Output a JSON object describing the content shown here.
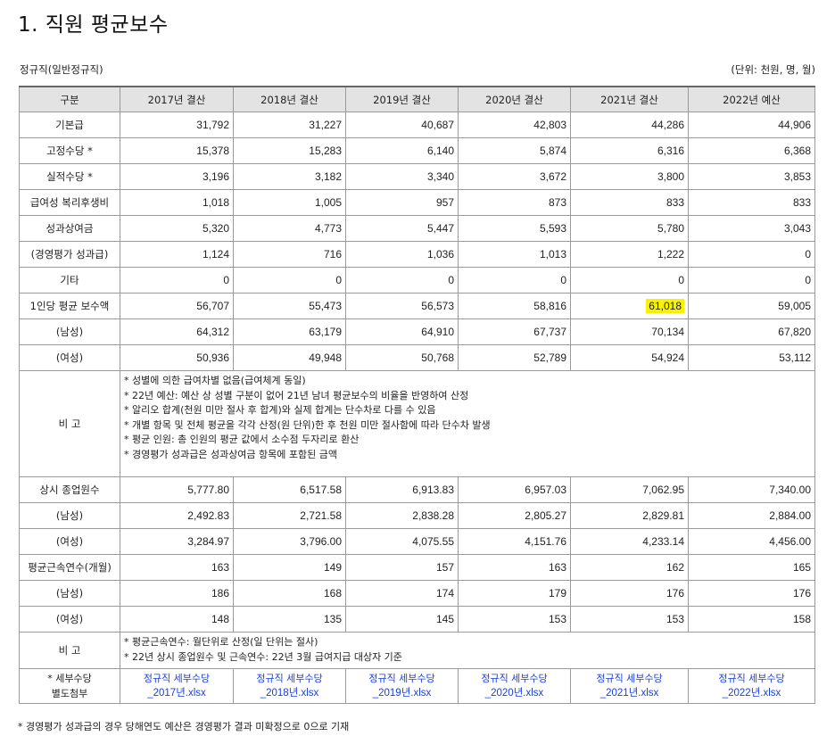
{
  "title": "1. 직원 평균보수",
  "subtitle_left": "정규직(일반정규직)",
  "subtitle_right": "(단위: 천원, 명, 월)",
  "columns": [
    "구분",
    "2017년 결산",
    "2018년 결산",
    "2019년 결산",
    "2020년 결산",
    "2021년 결산",
    "2022년 예산"
  ],
  "rows_pay": [
    {
      "label": "기본급",
      "values": [
        "31,792",
        "31,227",
        "40,687",
        "42,803",
        "44,286",
        "44,906"
      ]
    },
    {
      "label": "고정수당 *",
      "values": [
        "15,378",
        "15,283",
        "6,140",
        "5,874",
        "6,316",
        "6,368"
      ]
    },
    {
      "label": "실적수당 *",
      "values": [
        "3,196",
        "3,182",
        "3,340",
        "3,672",
        "3,800",
        "3,853"
      ]
    },
    {
      "label": "급여성 복리후생비",
      "values": [
        "1,018",
        "1,005",
        "957",
        "873",
        "833",
        "833"
      ]
    },
    {
      "label": "성과상여금",
      "values": [
        "5,320",
        "4,773",
        "5,447",
        "5,593",
        "5,780",
        "3,043"
      ]
    },
    {
      "label": "(경영평가 성과급)",
      "values": [
        "1,124",
        "716",
        "1,036",
        "1,013",
        "1,222",
        "0"
      ]
    },
    {
      "label": "기타",
      "values": [
        "0",
        "0",
        "0",
        "0",
        "0",
        "0"
      ]
    },
    {
      "label": "1인당 평균 보수액",
      "values": [
        "56,707",
        "55,473",
        "56,573",
        "58,816",
        "61,018",
        "59,005"
      ],
      "highlight_index": 4
    },
    {
      "label": "(남성)",
      "values": [
        "64,312",
        "63,179",
        "64,910",
        "67,737",
        "70,134",
        "67,820"
      ]
    },
    {
      "label": "(여성)",
      "values": [
        "50,936",
        "49,948",
        "50,768",
        "52,789",
        "54,924",
        "53,112"
      ]
    }
  ],
  "remarks1": {
    "label": "비 고",
    "lines": [
      "* 성별에 의한 급여차별 없음(급여체계 동일)",
      "* 22년 예산: 예산 상 성별 구분이 없어 21년 남녀 평균보수의 비율을 반영하여 산정",
      "* 알리오 합계(천원 미만 절사 후 합계)와 실제 합계는 단수차로 다를 수 있음",
      "* 개별 항목 및 전체 평균을 각각 산정(원 단위)한 후 천원 미만 절사함에 따라 단수차 발생",
      "* 평균 인원: 총 인원의 평균 값에서 소수점 두자리로 환산",
      "* 경영평가 성과급은 성과상여금 항목에 포함된 금액"
    ]
  },
  "rows_staff": [
    {
      "label": "상시 종업원수",
      "values": [
        "5,777.80",
        "6,517.58",
        "6,913.83",
        "6,957.03",
        "7,062.95",
        "7,340.00"
      ]
    },
    {
      "label": "(남성)",
      "values": [
        "2,492.83",
        "2,721.58",
        "2,838.28",
        "2,805.27",
        "2,829.81",
        "2,884.00"
      ]
    },
    {
      "label": "(여성)",
      "values": [
        "3,284.97",
        "3,796.00",
        "4,075.55",
        "4,151.76",
        "4,233.14",
        "4,456.00"
      ]
    },
    {
      "label": "평균근속연수(개월)",
      "values": [
        "163",
        "149",
        "157",
        "163",
        "162",
        "165"
      ]
    },
    {
      "label": "(남성)",
      "values": [
        "186",
        "168",
        "174",
        "179",
        "176",
        "176"
      ]
    },
    {
      "label": "(여성)",
      "values": [
        "148",
        "135",
        "145",
        "153",
        "153",
        "158"
      ]
    }
  ],
  "remarks2": {
    "label": "비 고",
    "lines": [
      "* 평균근속연수: 월단위로 산정(일 단위는 절사)",
      "* 22년 상시 종업원수 및 근속연수: 22년 3월 급여지급 대상자 기준"
    ]
  },
  "attachments": {
    "label_line1": "* 세부수당",
    "label_line2": "별도첨부",
    "links": [
      {
        "line1": "정규직 세부수당",
        "line2": "_2017년.xlsx"
      },
      {
        "line1": "정규직 세부수당",
        "line2": "_2018년.xlsx"
      },
      {
        "line1": "정규직 세부수당",
        "line2": "_2019년.xlsx"
      },
      {
        "line1": "정규직 세부수당",
        "line2": "_2020년.xlsx"
      },
      {
        "line1": "정규직 세부수당",
        "line2": "_2021년.xlsx"
      },
      {
        "line1": "정규직 세부수당",
        "line2": "_2022년.xlsx"
      }
    ]
  },
  "footnote": "* 경영평가 성과급의 경우 당해연도 예산은 경영평가 결과 미확정으로 0으로 기재",
  "colors": {
    "highlight": "#f7f300",
    "link": "#1a3fd8",
    "header_bg": "#e3e3e3"
  }
}
